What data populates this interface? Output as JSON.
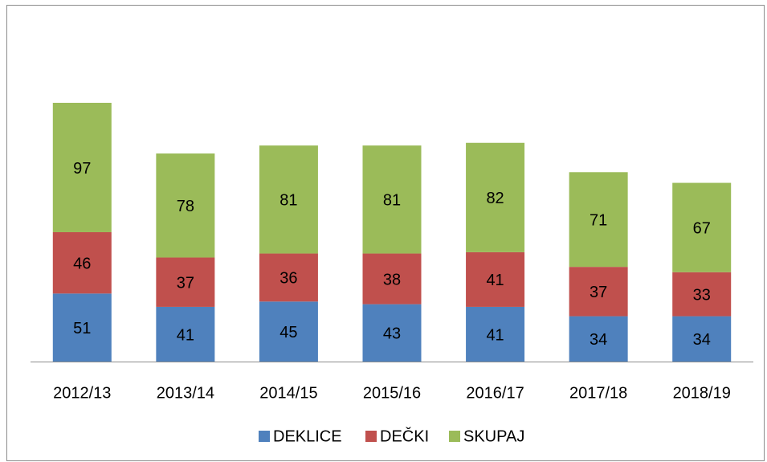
{
  "chart_data": {
    "type": "bar",
    "stacked": true,
    "categories": [
      "2012/13",
      "2013/14",
      "2014/15",
      "2015/16",
      "2016/17",
      "2017/18",
      "2018/19"
    ],
    "series": [
      {
        "name": "DEKLICE",
        "color": "#4f81bd",
        "values": [
          51,
          41,
          45,
          43,
          41,
          34,
          34
        ]
      },
      {
        "name": "DEČKI",
        "color": "#c0504d",
        "values": [
          46,
          37,
          36,
          38,
          41,
          37,
          33
        ]
      },
      {
        "name": "SKUPAJ",
        "color": "#9bbb59",
        "values": [
          97,
          78,
          81,
          81,
          82,
          71,
          67
        ]
      }
    ],
    "ylim": [
      0,
      260
    ],
    "legend": "bottom"
  }
}
